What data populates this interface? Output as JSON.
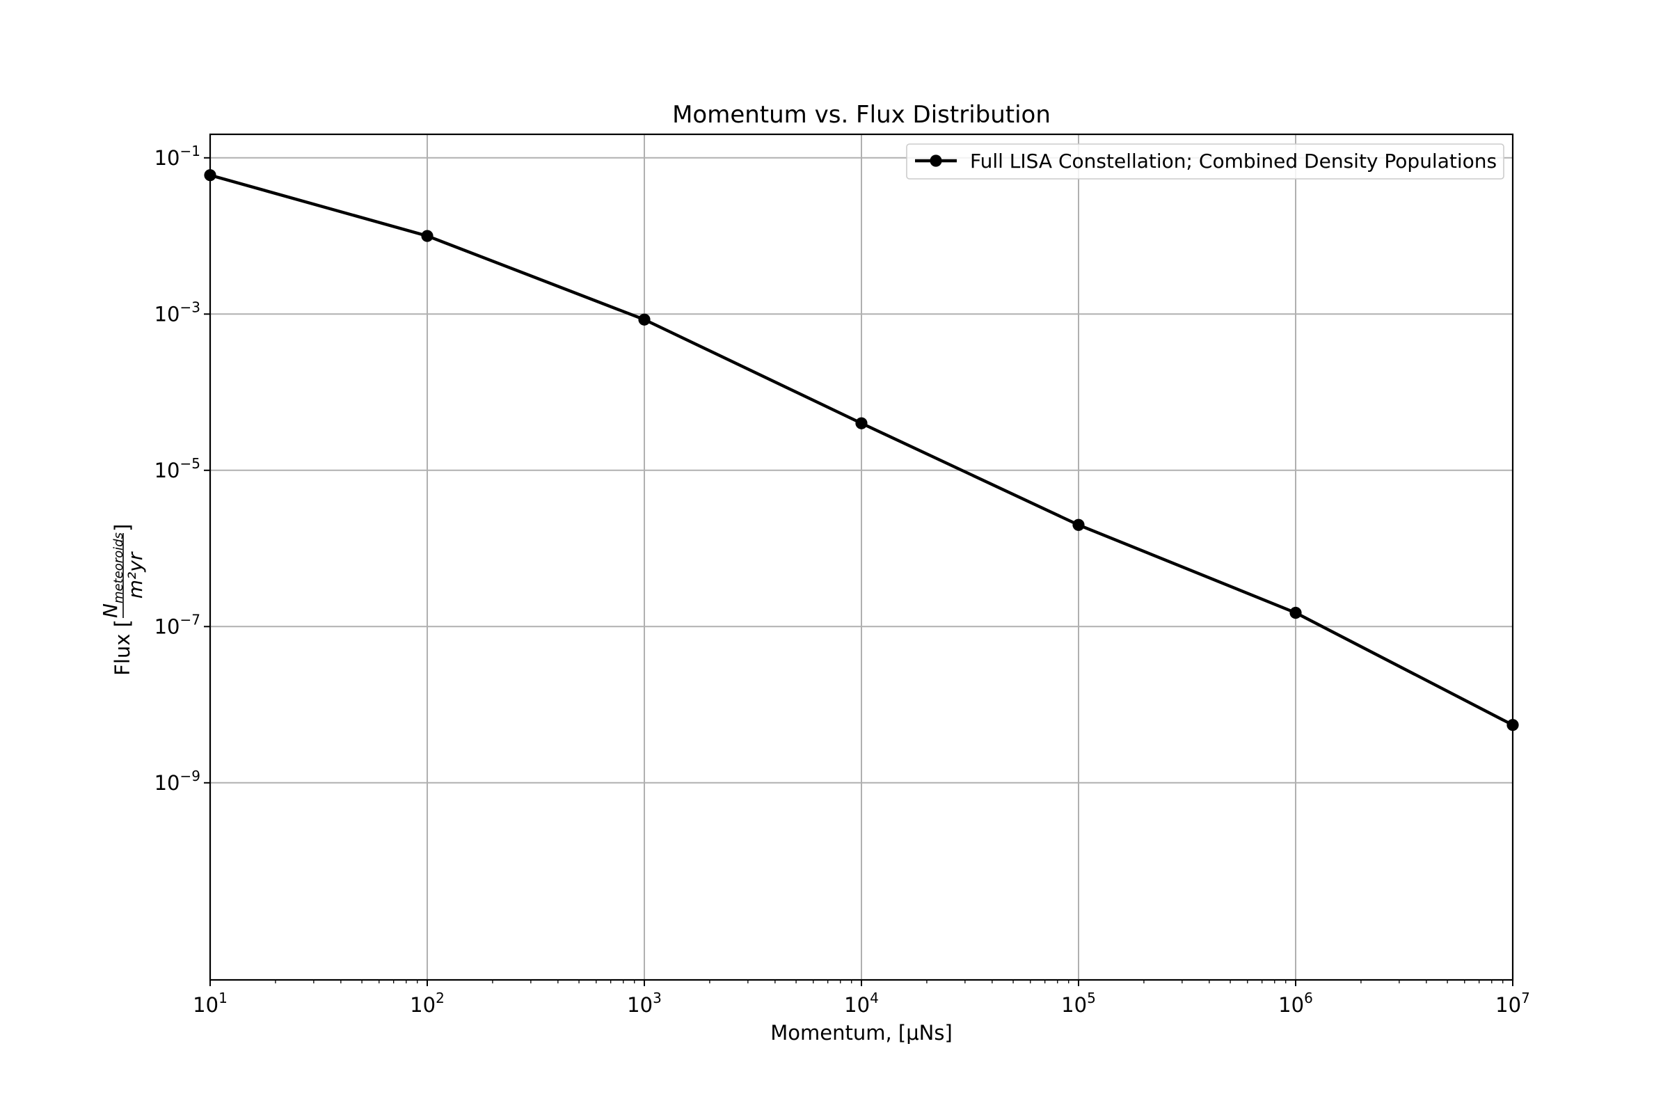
{
  "chart_data": {
    "type": "line",
    "title": "Momentum vs. Flux Distribution",
    "xlabel": "Momentum, [μNs]",
    "ylabel": {
      "prefix": "Flux [",
      "numerator": "N",
      "numerator_subscript": "meteoroids",
      "denominator": "m²yr",
      "suffix": "]"
    },
    "x_scale": "log",
    "y_scale": "log",
    "xlim": [
      10,
      10000000
    ],
    "ylim": [
      3e-12,
      0.2
    ],
    "grid": true,
    "legend_position": "top-right",
    "x_ticks": [
      {
        "value": 10,
        "base": "10",
        "exp": "1"
      },
      {
        "value": 100,
        "base": "10",
        "exp": "2"
      },
      {
        "value": 1000,
        "base": "10",
        "exp": "3"
      },
      {
        "value": 10000,
        "base": "10",
        "exp": "4"
      },
      {
        "value": 100000,
        "base": "10",
        "exp": "5"
      },
      {
        "value": 1000000,
        "base": "10",
        "exp": "6"
      },
      {
        "value": 10000000,
        "base": "10",
        "exp": "7"
      }
    ],
    "y_ticks": [
      {
        "value": 0.1,
        "base": "10",
        "exp": "−1"
      },
      {
        "value": 0.001,
        "base": "10",
        "exp": "−3"
      },
      {
        "value": 1e-05,
        "base": "10",
        "exp": "−5"
      },
      {
        "value": 1e-07,
        "base": "10",
        "exp": "−7"
      },
      {
        "value": 1e-09,
        "base": "10",
        "exp": "−9"
      }
    ],
    "series": [
      {
        "name": "Full LISA Constellation; Combined Density Populations",
        "color": "#000000",
        "marker": "circle",
        "x": [
          10,
          100,
          1000,
          10000,
          100000,
          1000000,
          10000000
        ],
        "y": [
          0.06,
          0.01,
          0.00085,
          4e-05,
          2e-06,
          1.5e-07,
          5.5e-09
        ]
      }
    ]
  }
}
